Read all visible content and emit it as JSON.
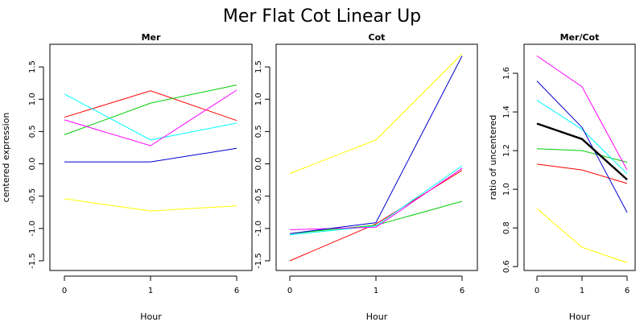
{
  "chart_data": {
    "title": "Mer Flat Cot Linear Up",
    "panels": [
      {
        "id": "mer",
        "type": "line",
        "title": "Mer",
        "xlabel": "Hour",
        "ylabel": "centered expression",
        "x": [
          "0",
          "1",
          "6"
        ],
        "ylim": [
          -1.65,
          1.85
        ],
        "yticks": [
          "-1.5",
          "-1.0",
          "-0.5",
          "0.0",
          "0.5",
          "1.0",
          "1.5"
        ],
        "series": [
          {
            "color": "#ff0000",
            "values": [
              0.72,
              1.13,
              0.67
            ]
          },
          {
            "color": "#00cc00",
            "values": [
              0.45,
              0.94,
              1.22
            ]
          },
          {
            "color": "#00ffff",
            "values": [
              1.08,
              0.37,
              0.63
            ]
          },
          {
            "color": "#ff00ff",
            "values": [
              0.68,
              0.28,
              1.14
            ]
          },
          {
            "color": "#0000cc",
            "values": [
              0.03,
              0.03,
              0.24
            ]
          },
          {
            "color": "#ffff00",
            "values": [
              -0.54,
              -0.73,
              -0.65
            ]
          }
        ]
      },
      {
        "id": "cot",
        "type": "line",
        "title": "Cot",
        "xlabel": "Hour",
        "ylabel": "",
        "x": [
          "0",
          "1",
          "6"
        ],
        "ylim": [
          -1.65,
          1.85
        ],
        "yticks": [
          "-1.5",
          "-1.0",
          "-0.5",
          "0.0",
          "0.5",
          "1.0",
          "1.5"
        ],
        "series": [
          {
            "color": "#ff0000",
            "values": [
              -1.5,
              -0.93,
              -0.1
            ]
          },
          {
            "color": "#00cc00",
            "values": [
              -1.08,
              -0.95,
              -0.58
            ]
          },
          {
            "color": "#00ffff",
            "values": [
              -1.1,
              -0.96,
              -0.03
            ]
          },
          {
            "color": "#ff00ff",
            "values": [
              -1.02,
              -0.98,
              -0.07
            ]
          },
          {
            "color": "#0000cc",
            "values": [
              -1.08,
              -0.91,
              1.67
            ]
          },
          {
            "color": "#ffff00",
            "values": [
              -0.15,
              0.37,
              1.7
            ]
          }
        ]
      },
      {
        "id": "ratio",
        "type": "line",
        "title": "Mer/Cot",
        "xlabel": "Hour",
        "ylabel": "ratio of uncentered",
        "x": [
          "0",
          "1",
          "6"
        ],
        "ylim": [
          0.58,
          1.75
        ],
        "yticks": [
          "0.6",
          "0.8",
          "1.0",
          "1.2",
          "1.4",
          "1.6"
        ],
        "series": [
          {
            "color": "#ff0000",
            "values": [
              1.13,
              1.1,
              1.03
            ]
          },
          {
            "color": "#00cc00",
            "values": [
              1.21,
              1.2,
              1.14
            ]
          },
          {
            "color": "#00ffff",
            "values": [
              1.46,
              1.31,
              1.08
            ]
          },
          {
            "color": "#ff00ff",
            "values": [
              1.69,
              1.53,
              1.1
            ]
          },
          {
            "color": "#0000cc",
            "values": [
              1.56,
              1.32,
              0.88
            ]
          },
          {
            "color": "#ffff00",
            "values": [
              0.9,
              0.7,
              0.62
            ]
          },
          {
            "color": "#000000",
            "values": [
              1.34,
              1.26,
              1.05
            ],
            "bold": true
          }
        ]
      }
    ]
  }
}
